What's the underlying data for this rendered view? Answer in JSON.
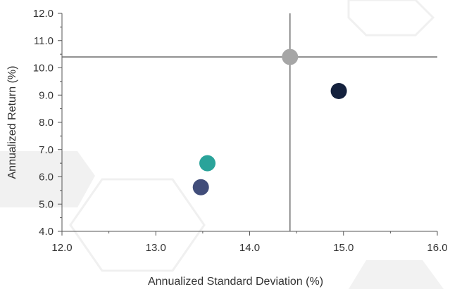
{
  "chart_data": {
    "type": "scatter",
    "title": "",
    "xlabel": "Annualized Standard Deviation (%)",
    "ylabel": "Annualized Return (%)",
    "xlim": [
      12.0,
      16.0
    ],
    "ylim": [
      4.0,
      12.0
    ],
    "x_ticks": [
      "12.0",
      "13.0",
      "14.0",
      "15.0",
      "16.0"
    ],
    "y_ticks": [
      "4.0",
      "5.0",
      "6.0",
      "7.0",
      "8.0",
      "9.0",
      "10.0",
      "11.0",
      "12.0"
    ],
    "reference_lines": {
      "x": 14.43,
      "y": 10.4
    },
    "grid": false,
    "points": [
      {
        "x": 14.43,
        "y": 10.4,
        "color": "#a6a6a6"
      },
      {
        "x": 14.95,
        "y": 9.15,
        "color": "#14213d"
      },
      {
        "x": 13.55,
        "y": 6.5,
        "color": "#2aa39a"
      },
      {
        "x": 13.48,
        "y": 5.62,
        "color": "#414d7a"
      }
    ],
    "colors": {
      "axis": "#555555",
      "reference_line": "#6e6e6e",
      "background_shape": "#eeeeee"
    }
  }
}
